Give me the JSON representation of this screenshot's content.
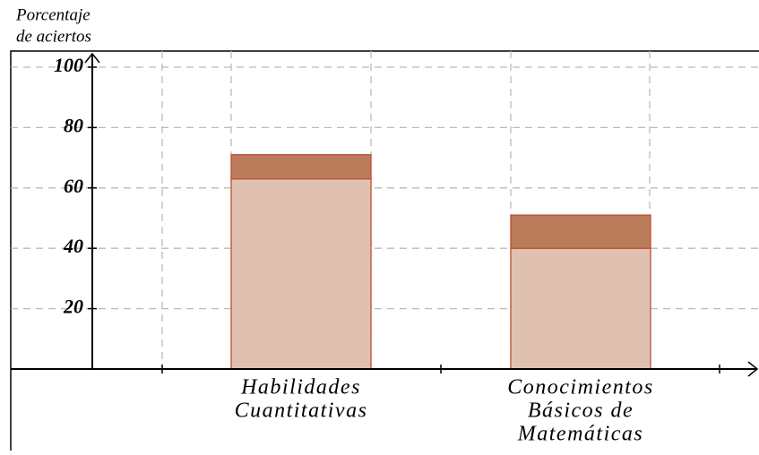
{
  "chart_data": {
    "type": "stacked-bar",
    "ylabel": [
      "Porcentaje",
      "de aciertos"
    ],
    "categories": [
      [
        "Habilidades",
        "Cuantitativas"
      ],
      [
        "Conocimientos",
        "Básicos de",
        "Matemáticas"
      ]
    ],
    "series": [
      {
        "color": "#e0c1b1",
        "values": [
          63,
          40
        ]
      },
      {
        "color": "#bb7c5c",
        "values": [
          8,
          11
        ]
      }
    ],
    "ylim": [
      0,
      100
    ],
    "yticks": [
      20,
      40,
      60,
      80,
      100
    ],
    "grid": true
  }
}
